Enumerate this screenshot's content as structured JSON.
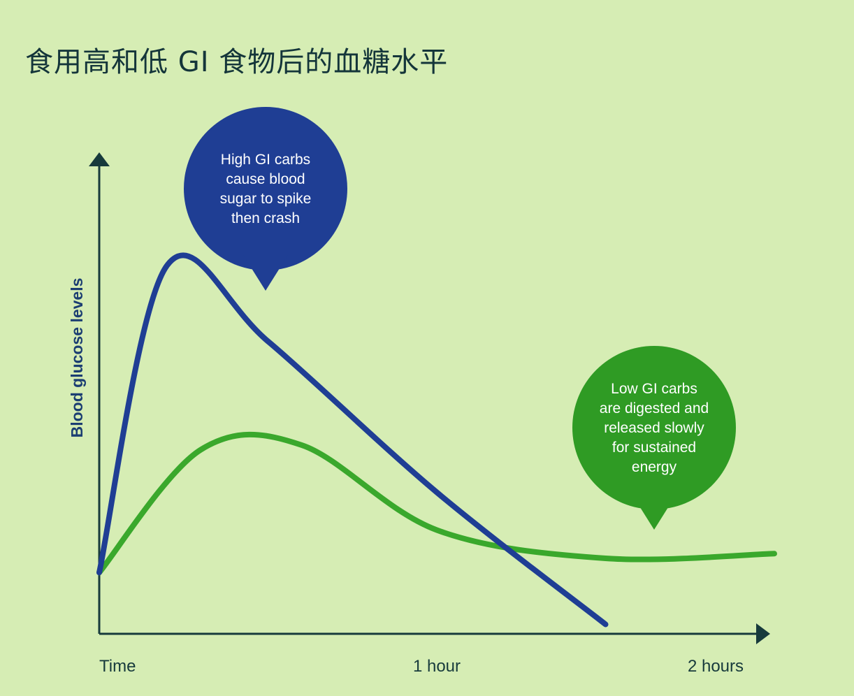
{
  "title": "食用高和低 GI 食物后的血糖水平",
  "chart_data": {
    "type": "line",
    "title": "食用高和低 GI 食物后的血糖水平",
    "xlabel": "",
    "ylabel": "Blood glucose levels",
    "x_ticks": [
      {
        "value": 0,
        "label": "Time"
      },
      {
        "value": 1,
        "label": "1 hour"
      },
      {
        "value": 2,
        "label": "2 hours"
      }
    ],
    "xlim": [
      0,
      2
    ],
    "ylim": [
      0,
      10
    ],
    "grid": false,
    "series": [
      {
        "key": "high",
        "color": "#1f3e94",
        "points": [
          [
            0,
            1.3
          ],
          [
            0.2,
            7.8
          ],
          [
            0.5,
            6.2
          ],
          [
            1.0,
            3.0
          ],
          [
            1.5,
            0.2
          ]
        ]
      },
      {
        "key": "low",
        "color": "#3aa82c",
        "points": [
          [
            0,
            1.3
          ],
          [
            0.3,
            3.9
          ],
          [
            0.6,
            4.0
          ],
          [
            1.0,
            2.2
          ],
          [
            1.5,
            1.6
          ],
          [
            2.0,
            1.7
          ]
        ]
      }
    ],
    "annotations": [
      {
        "key": "high",
        "fill": "#1f3e94",
        "lines": [
          "High GI carbs",
          "cause blood",
          "sugar to spike",
          "then crash"
        ]
      },
      {
        "key": "low",
        "fill": "#2f9b24",
        "lines": [
          "Low GI carbs",
          "are digested and",
          "released slowly",
          "for sustained",
          "energy"
        ]
      }
    ]
  }
}
